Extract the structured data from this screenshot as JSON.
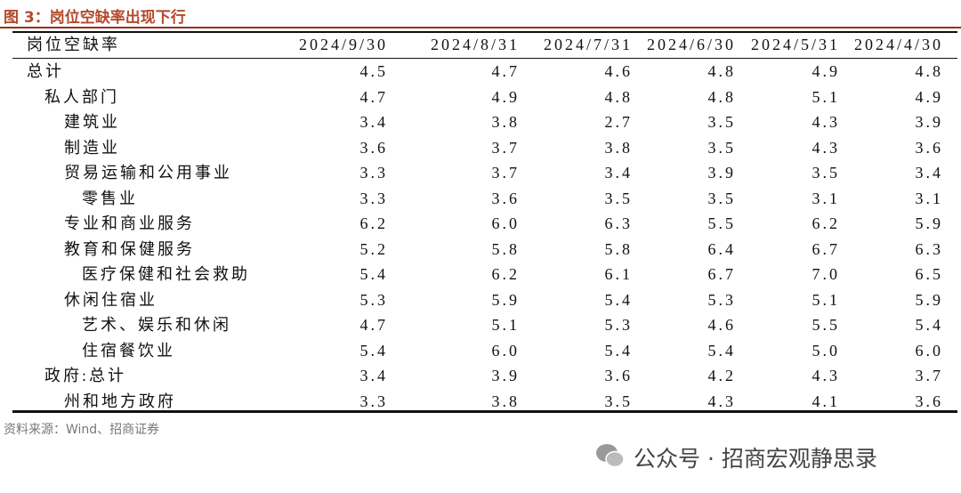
{
  "title": "图 3：岗位空缺率出现下行",
  "table": {
    "header": [
      "岗位空缺率",
      "2024/9/30",
      "2024/8/31",
      "2024/7/31",
      "2024/6/30",
      "2024/5/31",
      "2024/4/30"
    ],
    "rows": [
      [
        "总计",
        "4.5",
        "4.7",
        "4.6",
        "4.8",
        "4.9",
        "4.8"
      ],
      [
        "私人部门",
        "4.7",
        "4.9",
        "4.8",
        "4.8",
        "5.1",
        "4.9"
      ],
      [
        "建筑业",
        "3.4",
        "3.8",
        "2.7",
        "3.5",
        "4.3",
        "3.9"
      ],
      [
        "制造业",
        "3.6",
        "3.7",
        "3.8",
        "3.5",
        "4.3",
        "3.6"
      ],
      [
        "贸易运输和公用事业",
        "3.3",
        "3.7",
        "3.4",
        "3.9",
        "3.5",
        "3.4"
      ],
      [
        "零售业",
        "3.3",
        "3.6",
        "3.5",
        "3.5",
        "3.1",
        "3.1"
      ],
      [
        "专业和商业服务",
        "6.2",
        "6.0",
        "6.3",
        "5.5",
        "6.2",
        "5.9"
      ],
      [
        "教育和保健服务",
        "5.2",
        "5.8",
        "5.8",
        "6.4",
        "6.7",
        "6.3"
      ],
      [
        "医疗保健和社会救助",
        "5.4",
        "6.2",
        "6.1",
        "6.7",
        "7.0",
        "6.5"
      ],
      [
        "休闲住宿业",
        "5.3",
        "5.9",
        "5.4",
        "5.3",
        "5.1",
        "5.9"
      ],
      [
        "艺术、娱乐和休闲",
        "4.7",
        "5.1",
        "5.3",
        "4.6",
        "5.5",
        "5.4"
      ],
      [
        "住宿餐饮业",
        "5.4",
        "6.0",
        "5.4",
        "5.4",
        "5.0",
        "6.0"
      ],
      [
        "政府:总计",
        "3.4",
        "3.9",
        "3.6",
        "4.2",
        "4.3",
        "3.7"
      ],
      [
        "州和地方政府",
        "3.3",
        "3.8",
        "3.5",
        "4.3",
        "4.1",
        "3.6"
      ]
    ]
  },
  "source": "资料来源：Wind、招商证券",
  "watermark": "公众号 · 招商宏观静思录"
}
